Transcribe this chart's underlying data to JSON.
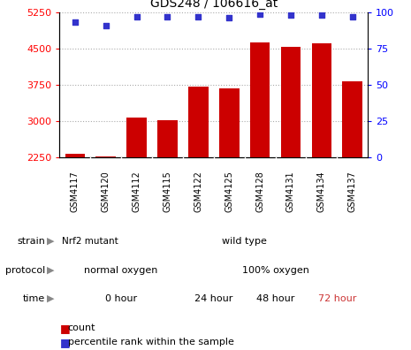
{
  "title": "GDS248 / 106616_at",
  "samples": [
    "GSM4117",
    "GSM4120",
    "GSM4112",
    "GSM4115",
    "GSM4122",
    "GSM4125",
    "GSM4128",
    "GSM4131",
    "GSM4134",
    "GSM4137"
  ],
  "counts": [
    2320,
    2270,
    3080,
    3020,
    3720,
    3680,
    4620,
    4540,
    4600,
    3820
  ],
  "percentiles": [
    93,
    91,
    97,
    97,
    97,
    96,
    99,
    98,
    98,
    97
  ],
  "ylim_left": [
    2250,
    5250
  ],
  "ylim_right": [
    0,
    100
  ],
  "yticks_left": [
    2250,
    3000,
    3750,
    4500,
    5250
  ],
  "yticks_right": [
    0,
    25,
    50,
    75,
    100
  ],
  "bar_color": "#cc0000",
  "dot_color": "#3333cc",
  "strain_nrf2_label": "Nrf2 mutant",
  "strain_nrf2_color": "#88dd88",
  "strain_wild_label": "wild type",
  "strain_wild_color": "#55cc55",
  "protocol_normal_label": "normal oxygen",
  "protocol_normal_color": "#bbaaee",
  "protocol_100_label": "100% oxygen",
  "protocol_100_color": "#8877cc",
  "time_0_label": "0 hour",
  "time_0_color": "#ffdddd",
  "time_24_label": "24 hour",
  "time_24_color": "#ffcccc",
  "time_48_label": "48 hour",
  "time_48_color": "#ffbbbb",
  "time_72_label": "72 hour",
  "time_72_color": "#dd8888",
  "time_72_text_color": "#cc3333",
  "background": "#ffffff",
  "xtick_bg": "#dddddd",
  "dotted_line_color": "#aaaaaa",
  "row_label_color": "#555555",
  "arrow_color": "#888888"
}
